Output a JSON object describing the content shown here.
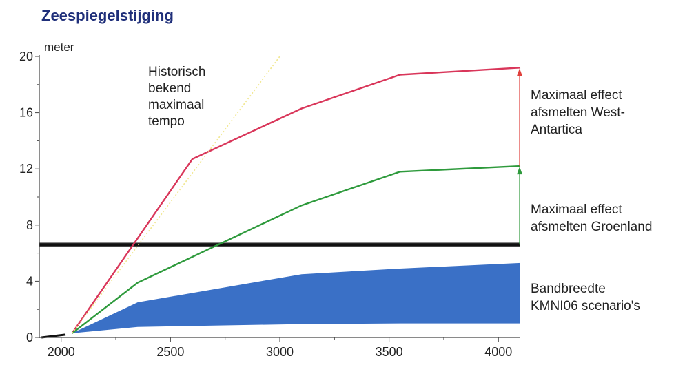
{
  "chart_data": {
    "type": "line",
    "title": "Zeespiegelstijging",
    "ylabel": "meter",
    "xlabel": "",
    "xlim": [
      1900,
      4100
    ],
    "ylim": [
      0,
      20
    ],
    "x_ticks": [
      2000,
      2500,
      3000,
      3500,
      4000
    ],
    "y_ticks": [
      0,
      4,
      8,
      12,
      16,
      20
    ],
    "grid": false,
    "series": [
      {
        "color": "#d9365a",
        "x": [
          2050,
          2600,
          3100,
          3550,
          4100
        ],
        "y": [
          0.3,
          12.7,
          16.3,
          18.7,
          19.2
        ]
      },
      {
        "color": "#2e9a3c",
        "x": [
          2050,
          2350,
          3100,
          3550,
          4100
        ],
        "y": [
          0.3,
          3.9,
          9.4,
          11.8,
          12.2
        ]
      },
      {
        "color": "#3a70c6",
        "type": "area",
        "x": [
          2050,
          2350,
          3100,
          3550,
          4100
        ],
        "upper": [
          0.3,
          2.5,
          4.5,
          4.9,
          5.3
        ],
        "lower": [
          0.3,
          0.75,
          0.95,
          1.0,
          1.0
        ]
      },
      {
        "color": "#f0e68c",
        "style": "dotted",
        "x": [
          2050,
          3000
        ],
        "y": [
          0.3,
          20
        ]
      }
    ],
    "reference_line": {
      "y": 6.6,
      "color": "#111111"
    },
    "annotations": [
      {
        "lines": [
          "Historisch",
          "bekend",
          "maximaal",
          "tempo"
        ]
      },
      {
        "lines": [
          "Maximaal effect",
          "afsmelten West-",
          "Antartica"
        ]
      },
      {
        "lines": [
          "Maximaal effect",
          "afsmelten Groenland"
        ]
      },
      {
        "lines": [
          "Bandbreedte",
          "KMNI06 scenario's"
        ]
      }
    ],
    "arrows": [
      {
        "x": 4100,
        "y_from": 12.2,
        "y_to": 19.2,
        "color": "#e0403c"
      },
      {
        "x": 4100,
        "y_from": 6.6,
        "y_to": 12.2,
        "color": "#2e9a3c"
      }
    ]
  }
}
